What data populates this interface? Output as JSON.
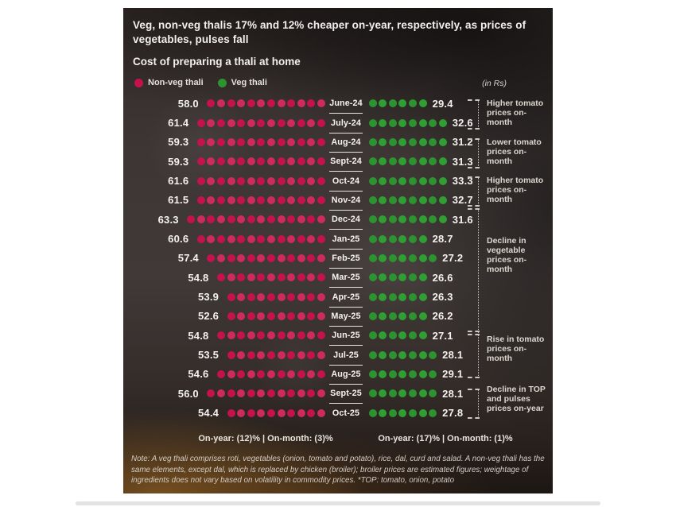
{
  "header": {
    "title": "Veg, non-veg thalis 17% and 12% cheaper on-year, respectively, as prices of vegetables, pulses fall",
    "subtitle": "Cost of preparing a thali at home",
    "unit_label": "(in Rs)"
  },
  "legend": [
    {
      "label": "Non-veg thali",
      "color": "#c5124c",
      "icon": "red-dot-icon"
    },
    {
      "label": "Veg thali",
      "color": "#2d9330",
      "icon": "green-dot-icon"
    }
  ],
  "chart_data": {
    "type": "bar",
    "variant": "dot-pictograph, months on center axis, non-veg bars grow left, veg bars grow right",
    "categories": [
      "June-24",
      "July-24",
      "Aug-24",
      "Sept-24",
      "Oct-24",
      "Nov-24",
      "Dec-24",
      "Jan-25",
      "Feb-25",
      "Mar-25",
      "Apr-25",
      "May-25",
      "Jun-25",
      "Jul-25",
      "Aug-25",
      "Sept-25",
      "Oct-25"
    ],
    "series": [
      {
        "name": "Non-veg thali",
        "color": "#c5124c",
        "values": [
          58.0,
          61.4,
          59.3,
          59.3,
          61.6,
          61.5,
          63.3,
          60.6,
          57.4,
          54.8,
          53.9,
          52.6,
          54.8,
          53.5,
          54.6,
          56.0,
          54.4
        ]
      },
      {
        "name": "Veg thali",
        "color": "#2d9330",
        "values": [
          29.4,
          32.6,
          31.2,
          31.3,
          33.3,
          32.7,
          31.6,
          28.7,
          27.2,
          26.6,
          26.3,
          26.2,
          27.1,
          28.1,
          29.1,
          28.1,
          27.8
        ]
      }
    ],
    "unit": "Rs",
    "rows": [
      {
        "month": "June-24",
        "nonveg": "58.0",
        "nonveg_dots": 12,
        "veg": "29.4",
        "veg_dots": 6
      },
      {
        "month": "July-24",
        "nonveg": "61.4",
        "nonveg_dots": 13,
        "veg": "32.6",
        "veg_dots": 8
      },
      {
        "month": "Aug-24",
        "nonveg": "59.3",
        "nonveg_dots": 13,
        "veg": "31.2",
        "veg_dots": 8
      },
      {
        "month": "Sept-24",
        "nonveg": "59.3",
        "nonveg_dots": 13,
        "veg": "31.3",
        "veg_dots": 8
      },
      {
        "month": "Oct-24",
        "nonveg": "61.6",
        "nonveg_dots": 13,
        "veg": "33.3",
        "veg_dots": 8
      },
      {
        "month": "Nov-24",
        "nonveg": "61.5",
        "nonveg_dots": 13,
        "veg": "32.7",
        "veg_dots": 8
      },
      {
        "month": "Dec-24",
        "nonveg": "63.3",
        "nonveg_dots": 14,
        "veg": "31.6",
        "veg_dots": 8
      },
      {
        "month": "Jan-25",
        "nonveg": "60.6",
        "nonveg_dots": 13,
        "veg": "28.7",
        "veg_dots": 6
      },
      {
        "month": "Feb-25",
        "nonveg": "57.4",
        "nonveg_dots": 12,
        "veg": "27.2",
        "veg_dots": 7
      },
      {
        "month": "Mar-25",
        "nonveg": "54.8",
        "nonveg_dots": 11,
        "veg": "26.6",
        "veg_dots": 6
      },
      {
        "month": "Apr-25",
        "nonveg": "53.9",
        "nonveg_dots": 10,
        "veg": "26.3",
        "veg_dots": 6
      },
      {
        "month": "May-25",
        "nonveg": "52.6",
        "nonveg_dots": 10,
        "veg": "26.2",
        "veg_dots": 6
      },
      {
        "month": "Jun-25",
        "nonveg": "54.8",
        "nonveg_dots": 11,
        "veg": "27.1",
        "veg_dots": 6
      },
      {
        "month": "Jul-25",
        "nonveg": "53.5",
        "nonveg_dots": 10,
        "veg": "28.1",
        "veg_dots": 7
      },
      {
        "month": "Aug-25",
        "nonveg": "54.6",
        "nonveg_dots": 11,
        "veg": "29.1",
        "veg_dots": 7
      },
      {
        "month": "Sept-25",
        "nonveg": "56.0",
        "nonveg_dots": 12,
        "veg": "28.1",
        "veg_dots": 7
      },
      {
        "month": "Oct-25",
        "nonveg": "54.4",
        "nonveg_dots": 10,
        "veg": "27.8",
        "veg_dots": 7
      }
    ],
    "footer": {
      "nonveg_summary": "On-year: (12)% | On-month: (3)%",
      "veg_summary": "On-year: (17)% | On-month: (1)%"
    },
    "annotations": [
      {
        "text": "Higher tomato prices on-month",
        "months": [
          "June-24",
          "July-24"
        ],
        "top": 115,
        "height": 38,
        "text_top": 0
      },
      {
        "text": "Lower tomato prices on-month",
        "months": [
          "Aug-24",
          "Sept-24"
        ],
        "top": 164,
        "height": 38,
        "text_top": 0
      },
      {
        "text": "Higher tomato prices on-month",
        "months": [
          "Oct-24",
          "Nov-24"
        ],
        "top": 212,
        "height": 38,
        "text_top": 0
      },
      {
        "text": "Decline in vegetable prices on-month",
        "months": [
          "Dec-24",
          "May-25"
        ],
        "top": 252,
        "height": 160,
        "text_top": 36
      },
      {
        "text": "Rise in tomato prices on-month",
        "months": [
          "Jun-25",
          "Aug-25"
        ],
        "top": 406,
        "height": 60,
        "text_top": 6
      },
      {
        "text": "Decline in TOP and pulses prices on-year",
        "months": [
          "Sept-25",
          "Oct-25"
        ],
        "top": 479,
        "height": 38,
        "text_top": -4
      }
    ],
    "legend_position": "top-left",
    "grid": false
  },
  "note": "Note: A veg thali comprises roti, vegetables (onion, tomato and potato), rice, dal, curd and salad. A non-veg thali has the same elements, except dal, which is replaced by chicken (broiler); broiler prices are estimated figures; weightage of ingredients does not vary based on volatility in commodity prices. *TOP: tomato, onion, potato"
}
